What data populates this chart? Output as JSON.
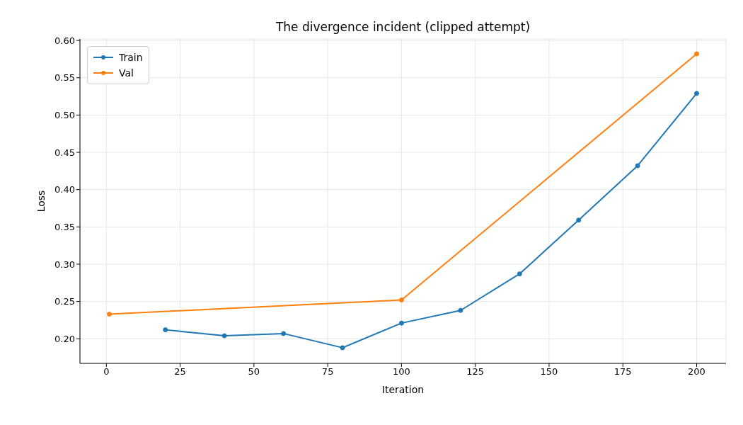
{
  "chart_data": {
    "type": "line",
    "title": "The divergence incident (clipped attempt)",
    "xlabel": "Iteration",
    "ylabel": "Loss",
    "series": [
      {
        "name": "Train",
        "color": "#1f77b4",
        "x": [
          20,
          40,
          60,
          80,
          100,
          120,
          140,
          160,
          180,
          200
        ],
        "values": [
          0.212,
          0.204,
          0.207,
          0.188,
          0.221,
          0.238,
          0.287,
          0.359,
          0.432,
          0.529
        ]
      },
      {
        "name": "Val",
        "color": "#ff7f0e",
        "x": [
          1,
          100,
          200
        ],
        "values": [
          0.233,
          0.252,
          0.582
        ]
      }
    ],
    "xlim": [
      -8.95,
      209.95
    ],
    "xticks": [
      0,
      25,
      50,
      75,
      100,
      125,
      150,
      175,
      200
    ],
    "ylim": [
      0.167,
      0.602
    ],
    "yticks": [
      {
        "value": 0.2,
        "label": "0.20"
      },
      {
        "value": 0.25,
        "label": "0.25"
      },
      {
        "value": 0.3,
        "label": "0.30"
      },
      {
        "value": 0.35,
        "label": "0.35"
      },
      {
        "value": 0.4,
        "label": "0.40"
      },
      {
        "value": 0.45,
        "label": "0.45"
      },
      {
        "value": 0.5,
        "label": "0.50"
      },
      {
        "value": 0.55,
        "label": "0.55"
      },
      {
        "value": 0.6,
        "label": "0.60"
      }
    ],
    "grid": true,
    "legend": "top left",
    "marker": "circle",
    "line_style": "solid"
  }
}
